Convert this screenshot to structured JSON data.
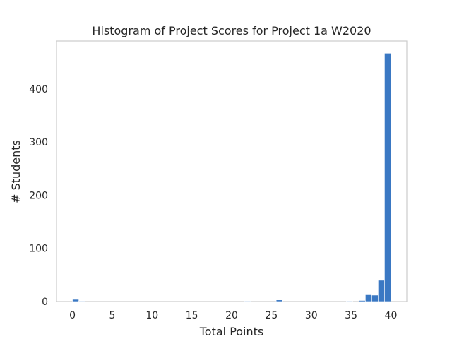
{
  "chart_data": {
    "type": "bar",
    "title": "Histogram of Project Scores for Project 1a W2020",
    "xlabel": "Total Points",
    "ylabel": "# Students",
    "xlim": [
      -2,
      42
    ],
    "ylim": [
      0,
      490
    ],
    "xticks": [
      0,
      5,
      10,
      15,
      20,
      25,
      30,
      35,
      40
    ],
    "yticks": [
      0,
      100,
      200,
      300,
      400
    ],
    "grid": false,
    "bar_color": "#3a78c3",
    "bins": [
      {
        "x0": 0.0,
        "x1": 0.8,
        "count": 4
      },
      {
        "x0": 0.8,
        "x1": 1.6,
        "count": 1
      },
      {
        "x0": 21.6,
        "x1": 22.4,
        "count": 1
      },
      {
        "x0": 25.6,
        "x1": 26.4,
        "count": 3
      },
      {
        "x0": 34.4,
        "x1": 35.2,
        "count": 1
      },
      {
        "x0": 36.0,
        "x1": 36.8,
        "count": 2
      },
      {
        "x0": 36.8,
        "x1": 37.6,
        "count": 14
      },
      {
        "x0": 37.6,
        "x1": 38.4,
        "count": 12
      },
      {
        "x0": 38.4,
        "x1": 39.2,
        "count": 40
      },
      {
        "x0": 39.2,
        "x1": 40.0,
        "count": 467
      }
    ]
  }
}
